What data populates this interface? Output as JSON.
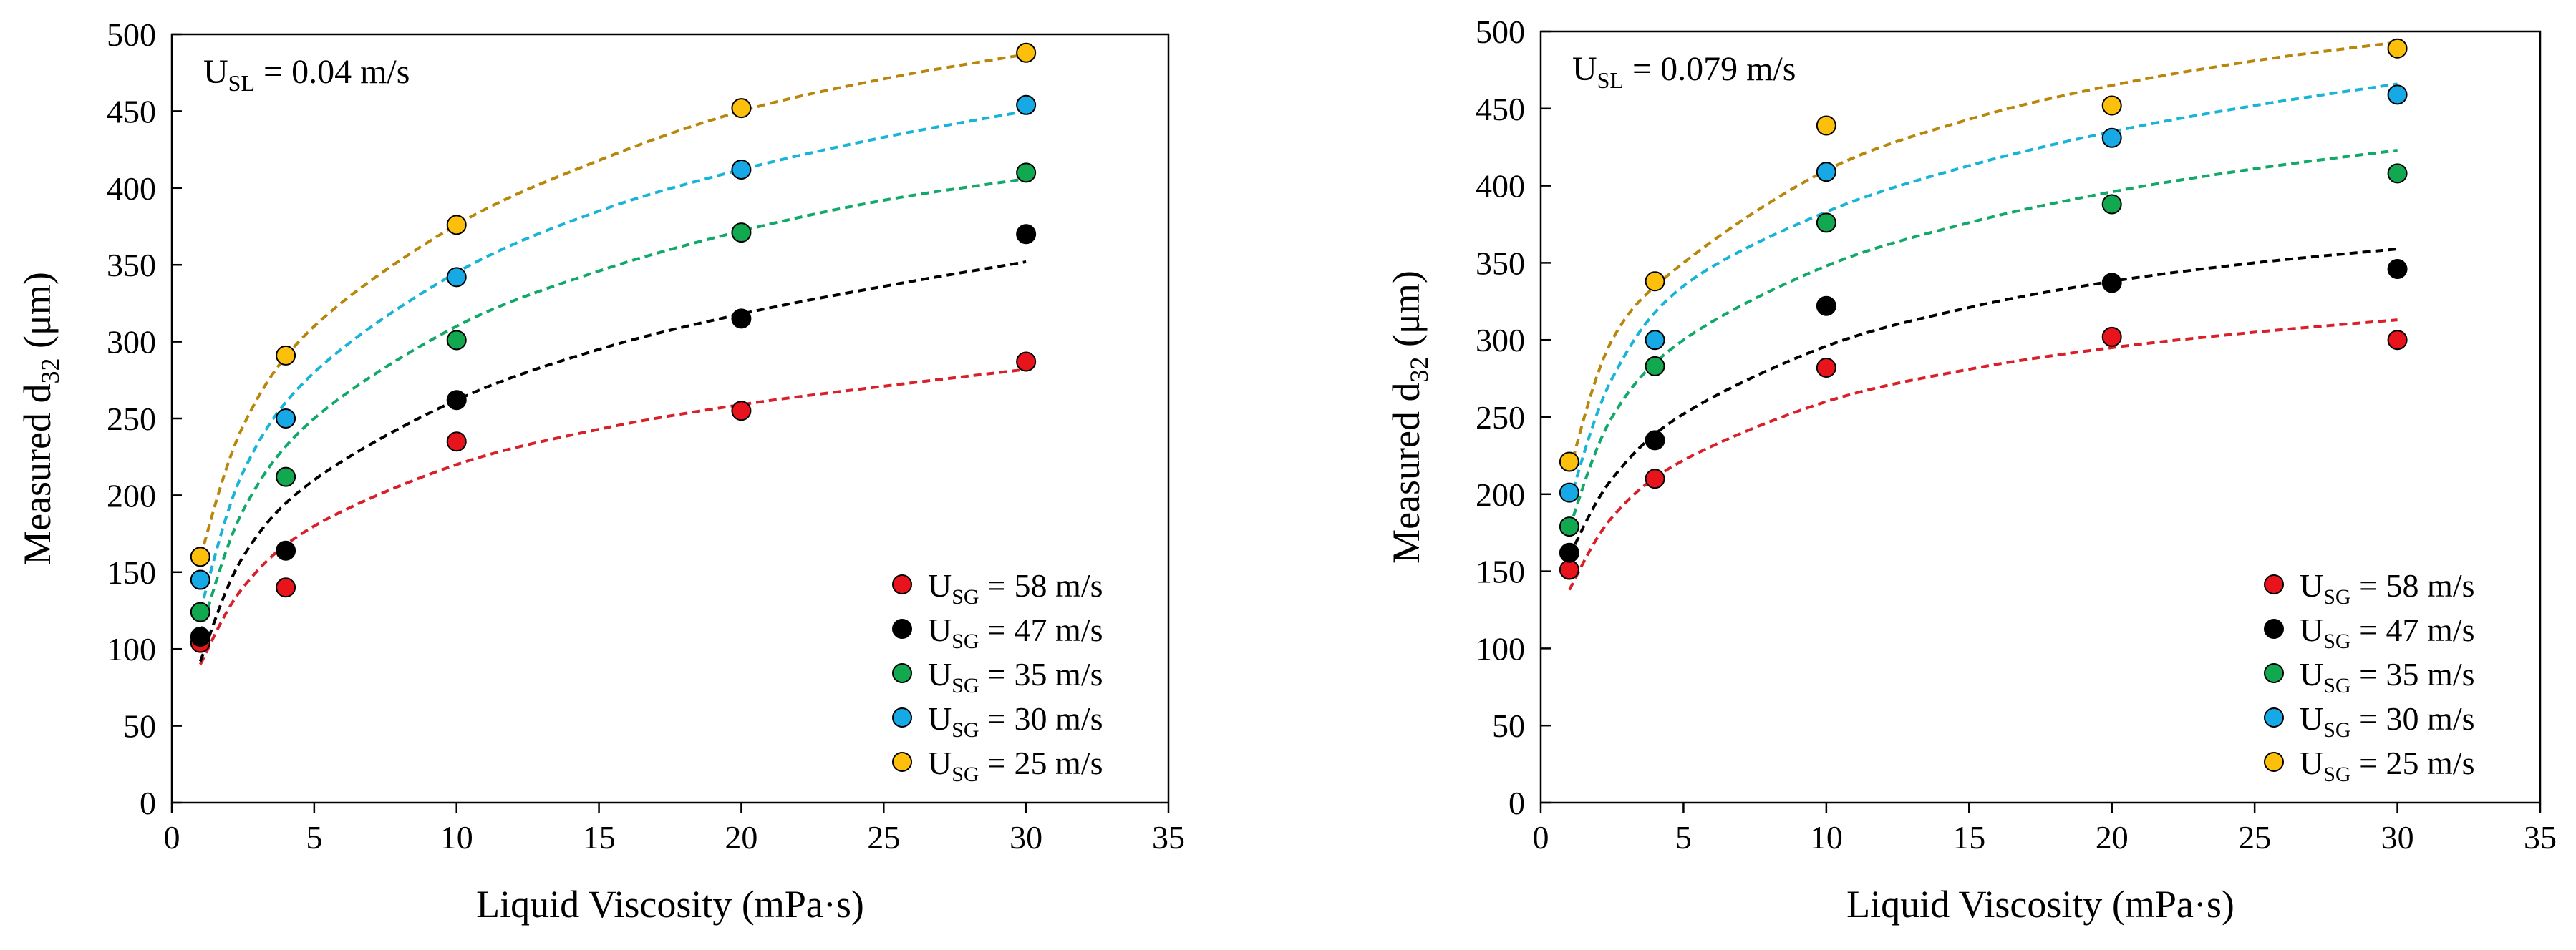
{
  "chart_data": [
    {
      "type": "scatter",
      "annotation": {
        "prefix": "U",
        "sub": "SL",
        "suffix": " = 0.04 m/s"
      },
      "xlabel": "Liquid Viscosity (mPa·s)",
      "ylabel": {
        "prefix": "Measured d",
        "sub": "32",
        "suffix": "  (μm)"
      },
      "xlim": [
        0,
        35
      ],
      "ylim": [
        0,
        500
      ],
      "xticks": [
        0,
        5,
        10,
        15,
        20,
        25,
        30,
        35
      ],
      "yticks": [
        0,
        50,
        100,
        150,
        200,
        250,
        300,
        350,
        400,
        450,
        500
      ],
      "legend_position": "bottom-right",
      "series": [
        {
          "name": "U_SG = 58 m/s",
          "label": {
            "prefix": "U",
            "sub": "SG",
            "suffix": " = 58 m/s"
          },
          "color": "#e8141c",
          "fit_color": "#d8202a",
          "x": [
            1,
            4,
            10,
            20,
            30
          ],
          "y": [
            104,
            140,
            235,
            255,
            287
          ],
          "fit_curve": [
            [
              1,
              90
            ],
            [
              2.5,
              140
            ],
            [
              5,
              180
            ],
            [
              10,
              220
            ],
            [
              15,
              243
            ],
            [
              20,
              259
            ],
            [
              25,
              271
            ],
            [
              30,
              282
            ]
          ]
        },
        {
          "name": "U_SG = 47 m/s",
          "label": {
            "prefix": "U",
            "sub": "SG",
            "suffix": " = 47 m/s"
          },
          "color": "#000000",
          "fit_color": "#000000",
          "x": [
            1,
            4,
            10,
            20,
            30
          ],
          "y": [
            108,
            164,
            262,
            315,
            370
          ],
          "fit_curve": [
            [
              1,
              92
            ],
            [
              2.5,
              160
            ],
            [
              5,
              210
            ],
            [
              10,
              262
            ],
            [
              15,
              295
            ],
            [
              20,
              318
            ],
            [
              25,
              336
            ],
            [
              30,
              352
            ]
          ]
        },
        {
          "name": "U_SG = 35 m/s",
          "label": {
            "prefix": "U",
            "sub": "SG",
            "suffix": " = 35 m/s"
          },
          "color": "#12a850",
          "fit_color": "#12a86a",
          "x": [
            1,
            4,
            10,
            20,
            30
          ],
          "y": [
            124,
            212,
            301,
            371,
            410
          ],
          "fit_curve": [
            [
              1,
              110
            ],
            [
              2.5,
              190
            ],
            [
              5,
              250
            ],
            [
              10,
              310
            ],
            [
              15,
              346
            ],
            [
              20,
              372
            ],
            [
              25,
              392
            ],
            [
              30,
              406
            ]
          ]
        },
        {
          "name": "U_SG = 30 m/s",
          "label": {
            "prefix": "U",
            "sub": "SG",
            "suffix": " = 30 m/s"
          },
          "color": "#17a8e6",
          "fit_color": "#17b4d8",
          "x": [
            1,
            4,
            10,
            20,
            30
          ],
          "y": [
            145,
            250,
            342,
            412,
            454
          ],
          "fit_curve": [
            [
              1,
              125
            ],
            [
              2.5,
              215
            ],
            [
              5,
              280
            ],
            [
              10,
              345
            ],
            [
              15,
              385
            ],
            [
              20,
              412
            ],
            [
              25,
              433
            ],
            [
              30,
              450
            ]
          ]
        },
        {
          "name": "U_SG = 25 m/s",
          "label": {
            "prefix": "U",
            "sub": "SG",
            "suffix": " = 25 m/s"
          },
          "color": "#fcc00c",
          "fit_color": "#b8860b",
          "x": [
            1,
            4,
            10,
            20,
            30
          ],
          "y": [
            160,
            291,
            376,
            452,
            488
          ],
          "fit_curve": [
            [
              1,
              160
            ],
            [
              2.5,
              245
            ],
            [
              5,
              310
            ],
            [
              10,
              376
            ],
            [
              15,
              418
            ],
            [
              20,
              450
            ],
            [
              25,
              471
            ],
            [
              30,
              487
            ]
          ]
        }
      ]
    },
    {
      "type": "scatter",
      "annotation": {
        "prefix": "U",
        "sub": "SL",
        "suffix": " = 0.079 m/s"
      },
      "xlabel": "Liquid Viscosity (mPa·s)",
      "ylabel": {
        "prefix": "Measured d",
        "sub": "32",
        "suffix": "  (μm)"
      },
      "xlim": [
        0,
        35
      ],
      "ylim": [
        0,
        500
      ],
      "xticks": [
        0,
        5,
        10,
        15,
        20,
        25,
        30,
        35
      ],
      "yticks": [
        0,
        50,
        100,
        150,
        200,
        250,
        300,
        350,
        400,
        450,
        500
      ],
      "legend_position": "bottom-right",
      "series": [
        {
          "name": "U_SG = 58 m/s",
          "label": {
            "prefix": "U",
            "sub": "SG",
            "suffix": " = 58 m/s"
          },
          "color": "#e8141c",
          "fit_color": "#d8202a",
          "x": [
            1,
            4,
            10,
            20,
            30
          ],
          "y": [
            151,
            210,
            282,
            302,
            300
          ],
          "fit_curve": [
            [
              1,
              138
            ],
            [
              2.5,
              185
            ],
            [
              5,
              222
            ],
            [
              10,
              260
            ],
            [
              15,
              281
            ],
            [
              20,
              295
            ],
            [
              25,
              305
            ],
            [
              30,
              313
            ]
          ]
        },
        {
          "name": "U_SG = 47 m/s",
          "label": {
            "prefix": "U",
            "sub": "SG",
            "suffix": " = 47 m/s"
          },
          "color": "#000000",
          "fit_color": "#000000",
          "x": [
            1,
            4,
            10,
            20,
            30
          ],
          "y": [
            162,
            235,
            322,
            337,
            346
          ],
          "fit_curve": [
            [
              1,
              160
            ],
            [
              2.5,
              210
            ],
            [
              5,
              252
            ],
            [
              10,
              296
            ],
            [
              15,
              321
            ],
            [
              20,
              338
            ],
            [
              25,
              350
            ],
            [
              30,
              359
            ]
          ]
        },
        {
          "name": "U_SG = 35 m/s",
          "label": {
            "prefix": "U",
            "sub": "SG",
            "suffix": " = 35 m/s"
          },
          "color": "#12a850",
          "fit_color": "#12a86a",
          "x": [
            1,
            4,
            10,
            20,
            30
          ],
          "y": [
            179,
            283,
            376,
            388,
            408
          ],
          "fit_curve": [
            [
              1,
              178
            ],
            [
              2.5,
              250
            ],
            [
              5,
              300
            ],
            [
              10,
              348
            ],
            [
              15,
              376
            ],
            [
              20,
              396
            ],
            [
              25,
              411
            ],
            [
              30,
              423
            ]
          ]
        },
        {
          "name": "U_SG = 30 m/s",
          "label": {
            "prefix": "U",
            "sub": "SG",
            "suffix": " = 30 m/s"
          },
          "color": "#17a8e6",
          "fit_color": "#17b4d8",
          "x": [
            1,
            4,
            10,
            20,
            30
          ],
          "y": [
            201,
            300,
            409,
            431,
            459
          ],
          "fit_curve": [
            [
              1,
              195
            ],
            [
              2.5,
              275
            ],
            [
              5,
              335
            ],
            [
              10,
              383
            ],
            [
              15,
              413
            ],
            [
              20,
              435
            ],
            [
              25,
              452
            ],
            [
              30,
              466
            ]
          ]
        },
        {
          "name": "U_SG = 25 m/s",
          "label": {
            "prefix": "U",
            "sub": "SG",
            "suffix": " = 25 m/s"
          },
          "color": "#fcc00c",
          "fit_color": "#b8860b",
          "x": [
            1,
            4,
            10,
            20,
            30
          ],
          "y": [
            221,
            338,
            439,
            452,
            489
          ],
          "fit_curve": [
            [
              1,
              215
            ],
            [
              2.5,
              300
            ],
            [
              5,
              350
            ],
            [
              10,
              410
            ],
            [
              15,
              443
            ],
            [
              20,
              465
            ],
            [
              25,
              481
            ],
            [
              30,
              493
            ]
          ]
        }
      ]
    }
  ]
}
